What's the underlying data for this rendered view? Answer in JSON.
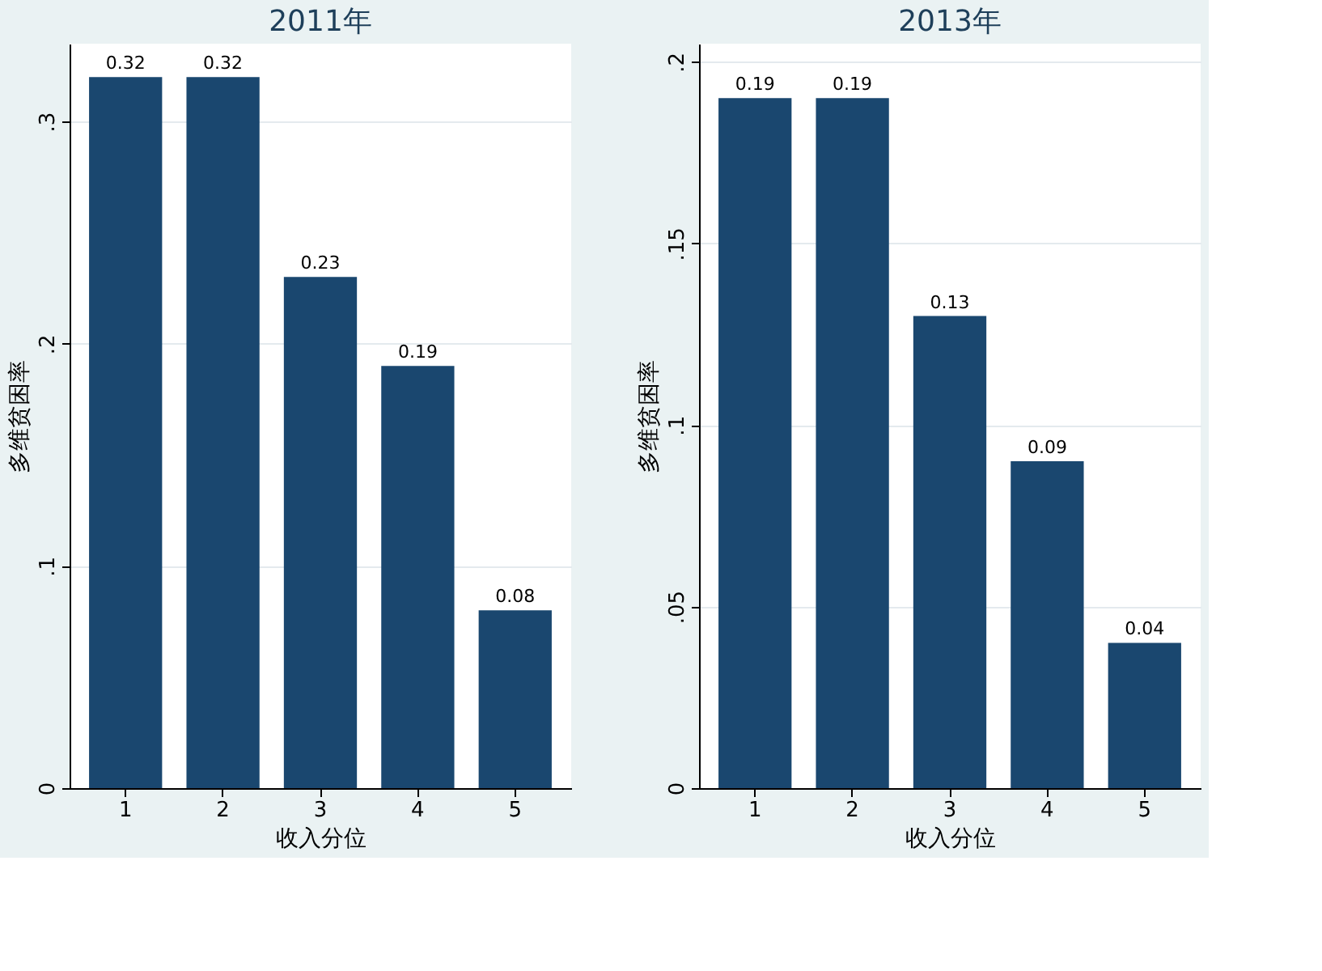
{
  "chart_data": [
    {
      "type": "bar",
      "title": "2011年",
      "xlabel": "收入分位",
      "ylabel": "多维贫困率",
      "categories": [
        "1",
        "2",
        "3",
        "4",
        "5"
      ],
      "values": [
        0.32,
        0.32,
        0.23,
        0.19,
        0.08
      ],
      "color": "#1a476f",
      "data_labels": true,
      "ylim": [
        0,
        0.335
      ],
      "yticks": [
        0,
        {
          "value": 0.1,
          "label": ".1"
        },
        {
          "value": 0.2,
          "label": ".2"
        },
        {
          "value": 0.3,
          "label": ".3"
        }
      ],
      "grid": "y"
    },
    {
      "type": "bar",
      "title": "2013年",
      "xlabel": "收入分位",
      "ylabel": "多维贫困率",
      "categories": [
        "1",
        "2",
        "3",
        "4",
        "5"
      ],
      "values": [
        0.19,
        0.19,
        0.13,
        0.09,
        0.04
      ],
      "color": "#1a476f",
      "data_labels": true,
      "ylim": [
        0,
        0.205
      ],
      "yticks": [
        0,
        {
          "value": 0.05,
          "label": ".05"
        },
        {
          "value": 0.1,
          "label": ".1"
        },
        {
          "value": 0.15,
          "label": ".15"
        },
        {
          "value": 0.2,
          "label": ".2"
        }
      ],
      "grid": "y"
    }
  ]
}
